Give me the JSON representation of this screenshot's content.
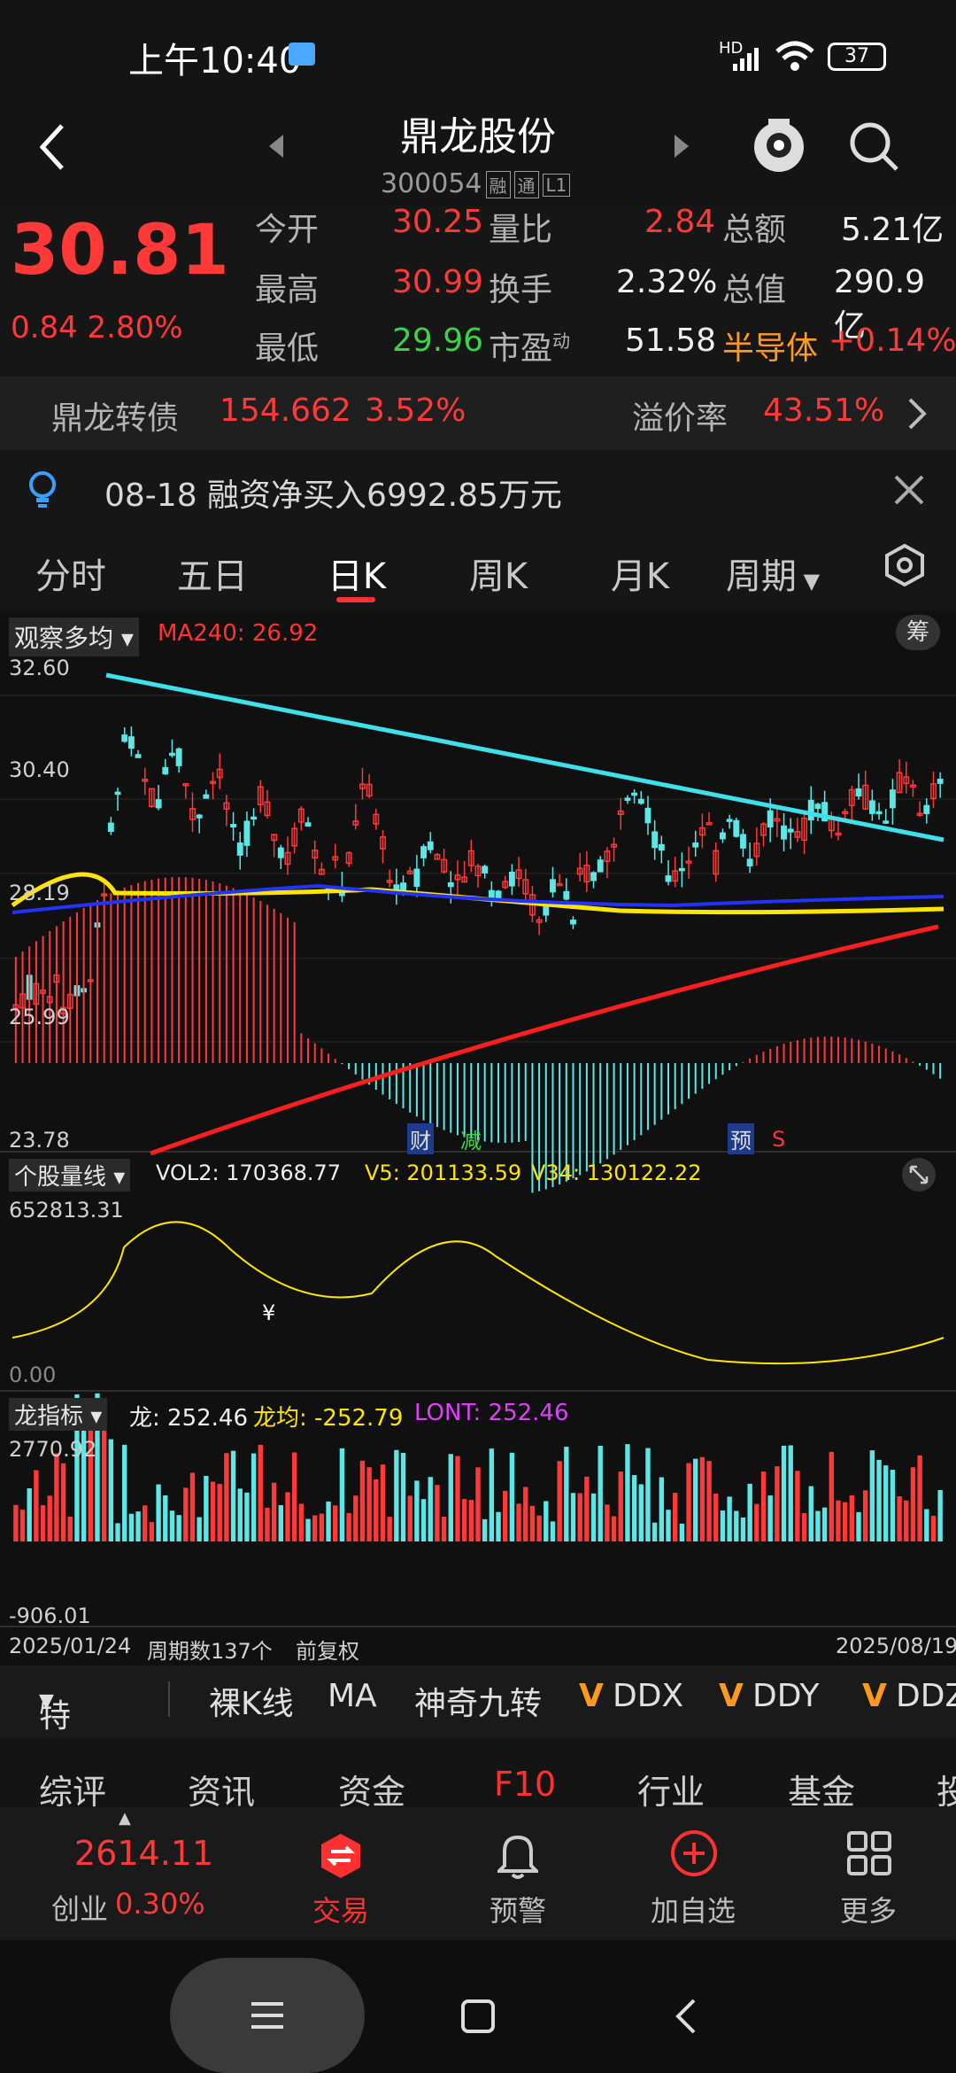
{
  "status_bar": {
    "time": "上午10:40",
    "battery": "37",
    "network": "HD"
  },
  "header": {
    "title": "鼎龙股份",
    "code": "300054",
    "tags": [
      "融",
      "通",
      "L1"
    ]
  },
  "quote": {
    "price": "30.81",
    "change": "0.84",
    "change_pct": "2.80%",
    "fields": [
      {
        "label": "今开",
        "value": "30.25",
        "tone": "red"
      },
      {
        "label": "量比",
        "value": "2.84",
        "tone": "red"
      },
      {
        "label": "总额",
        "value": "5.21亿",
        "tone": "white"
      },
      {
        "label": "最高",
        "value": "30.99",
        "tone": "red"
      },
      {
        "label": "换手",
        "value": "2.32%",
        "tone": "white"
      },
      {
        "label": "总值",
        "value": "290.9亿",
        "tone": "white"
      },
      {
        "label": "最低",
        "value": "29.96",
        "tone": "green"
      },
      {
        "label": "市盈",
        "sup": "动",
        "value": "51.58",
        "tone": "white"
      }
    ],
    "sector": {
      "name": "半导体",
      "change": "+0.14%"
    }
  },
  "bond": {
    "name": "鼎龙转债",
    "price": "154.662",
    "change": "3.52%",
    "premium_label": "溢价率",
    "premium": "43.51%"
  },
  "notice": {
    "text": "08-18 融资净买入6992.85万元"
  },
  "tabs": [
    "分时",
    "五日",
    "日K",
    "周K",
    "月K",
    "周期"
  ],
  "active_tab": "日K",
  "kline": {
    "indicator_select": "观察多均",
    "ma_label": "MA240: 26.92",
    "chip_button": "筹",
    "y_ticks": [
      "32.60",
      "30.40",
      "28.19",
      "25.99",
      "23.78"
    ],
    "markers": [
      "财",
      "减",
      "预",
      "S"
    ]
  },
  "volume": {
    "indicator_select": "个股量线",
    "vol2": "VOL2: 170368.77",
    "v5": "V5: 201133.59",
    "v34": "V34: 130122.22",
    "top_tick": "652813.31",
    "bottom_tick": "0.00",
    "yen_marker": "¥"
  },
  "dragon": {
    "indicator_select": "龙指标",
    "long": "龙: 252.46",
    "long_avg": "龙均: -252.79",
    "lont": "LONT: 252.46",
    "top_tick": "2770.92",
    "bottom_tick": "-906.01"
  },
  "footer_axis": {
    "start_date": "2025/01/24",
    "period_count": "周期数137个",
    "adjust": "前复权",
    "end_date": "2025/08/19"
  },
  "toolbar": {
    "feature": "特色",
    "items": [
      "裸K线",
      "MA",
      "神奇九转",
      "DDX",
      "DDY",
      "DDZ"
    ]
  },
  "bottom_tabs": [
    "综评",
    "资讯",
    "资金",
    "F10",
    "行业",
    "基金",
    "投"
  ],
  "nav": {
    "index_value": "2614.11",
    "index_name": "创业",
    "index_change": "0.30%",
    "items": [
      "交易",
      "预警",
      "加自选",
      "更多"
    ]
  },
  "colors": {
    "up": "#ff3838",
    "down": "#5ce6e6",
    "trend": "#3ee0ea",
    "ma240": "#ff1e1e",
    "accent": "#ff3030"
  }
}
